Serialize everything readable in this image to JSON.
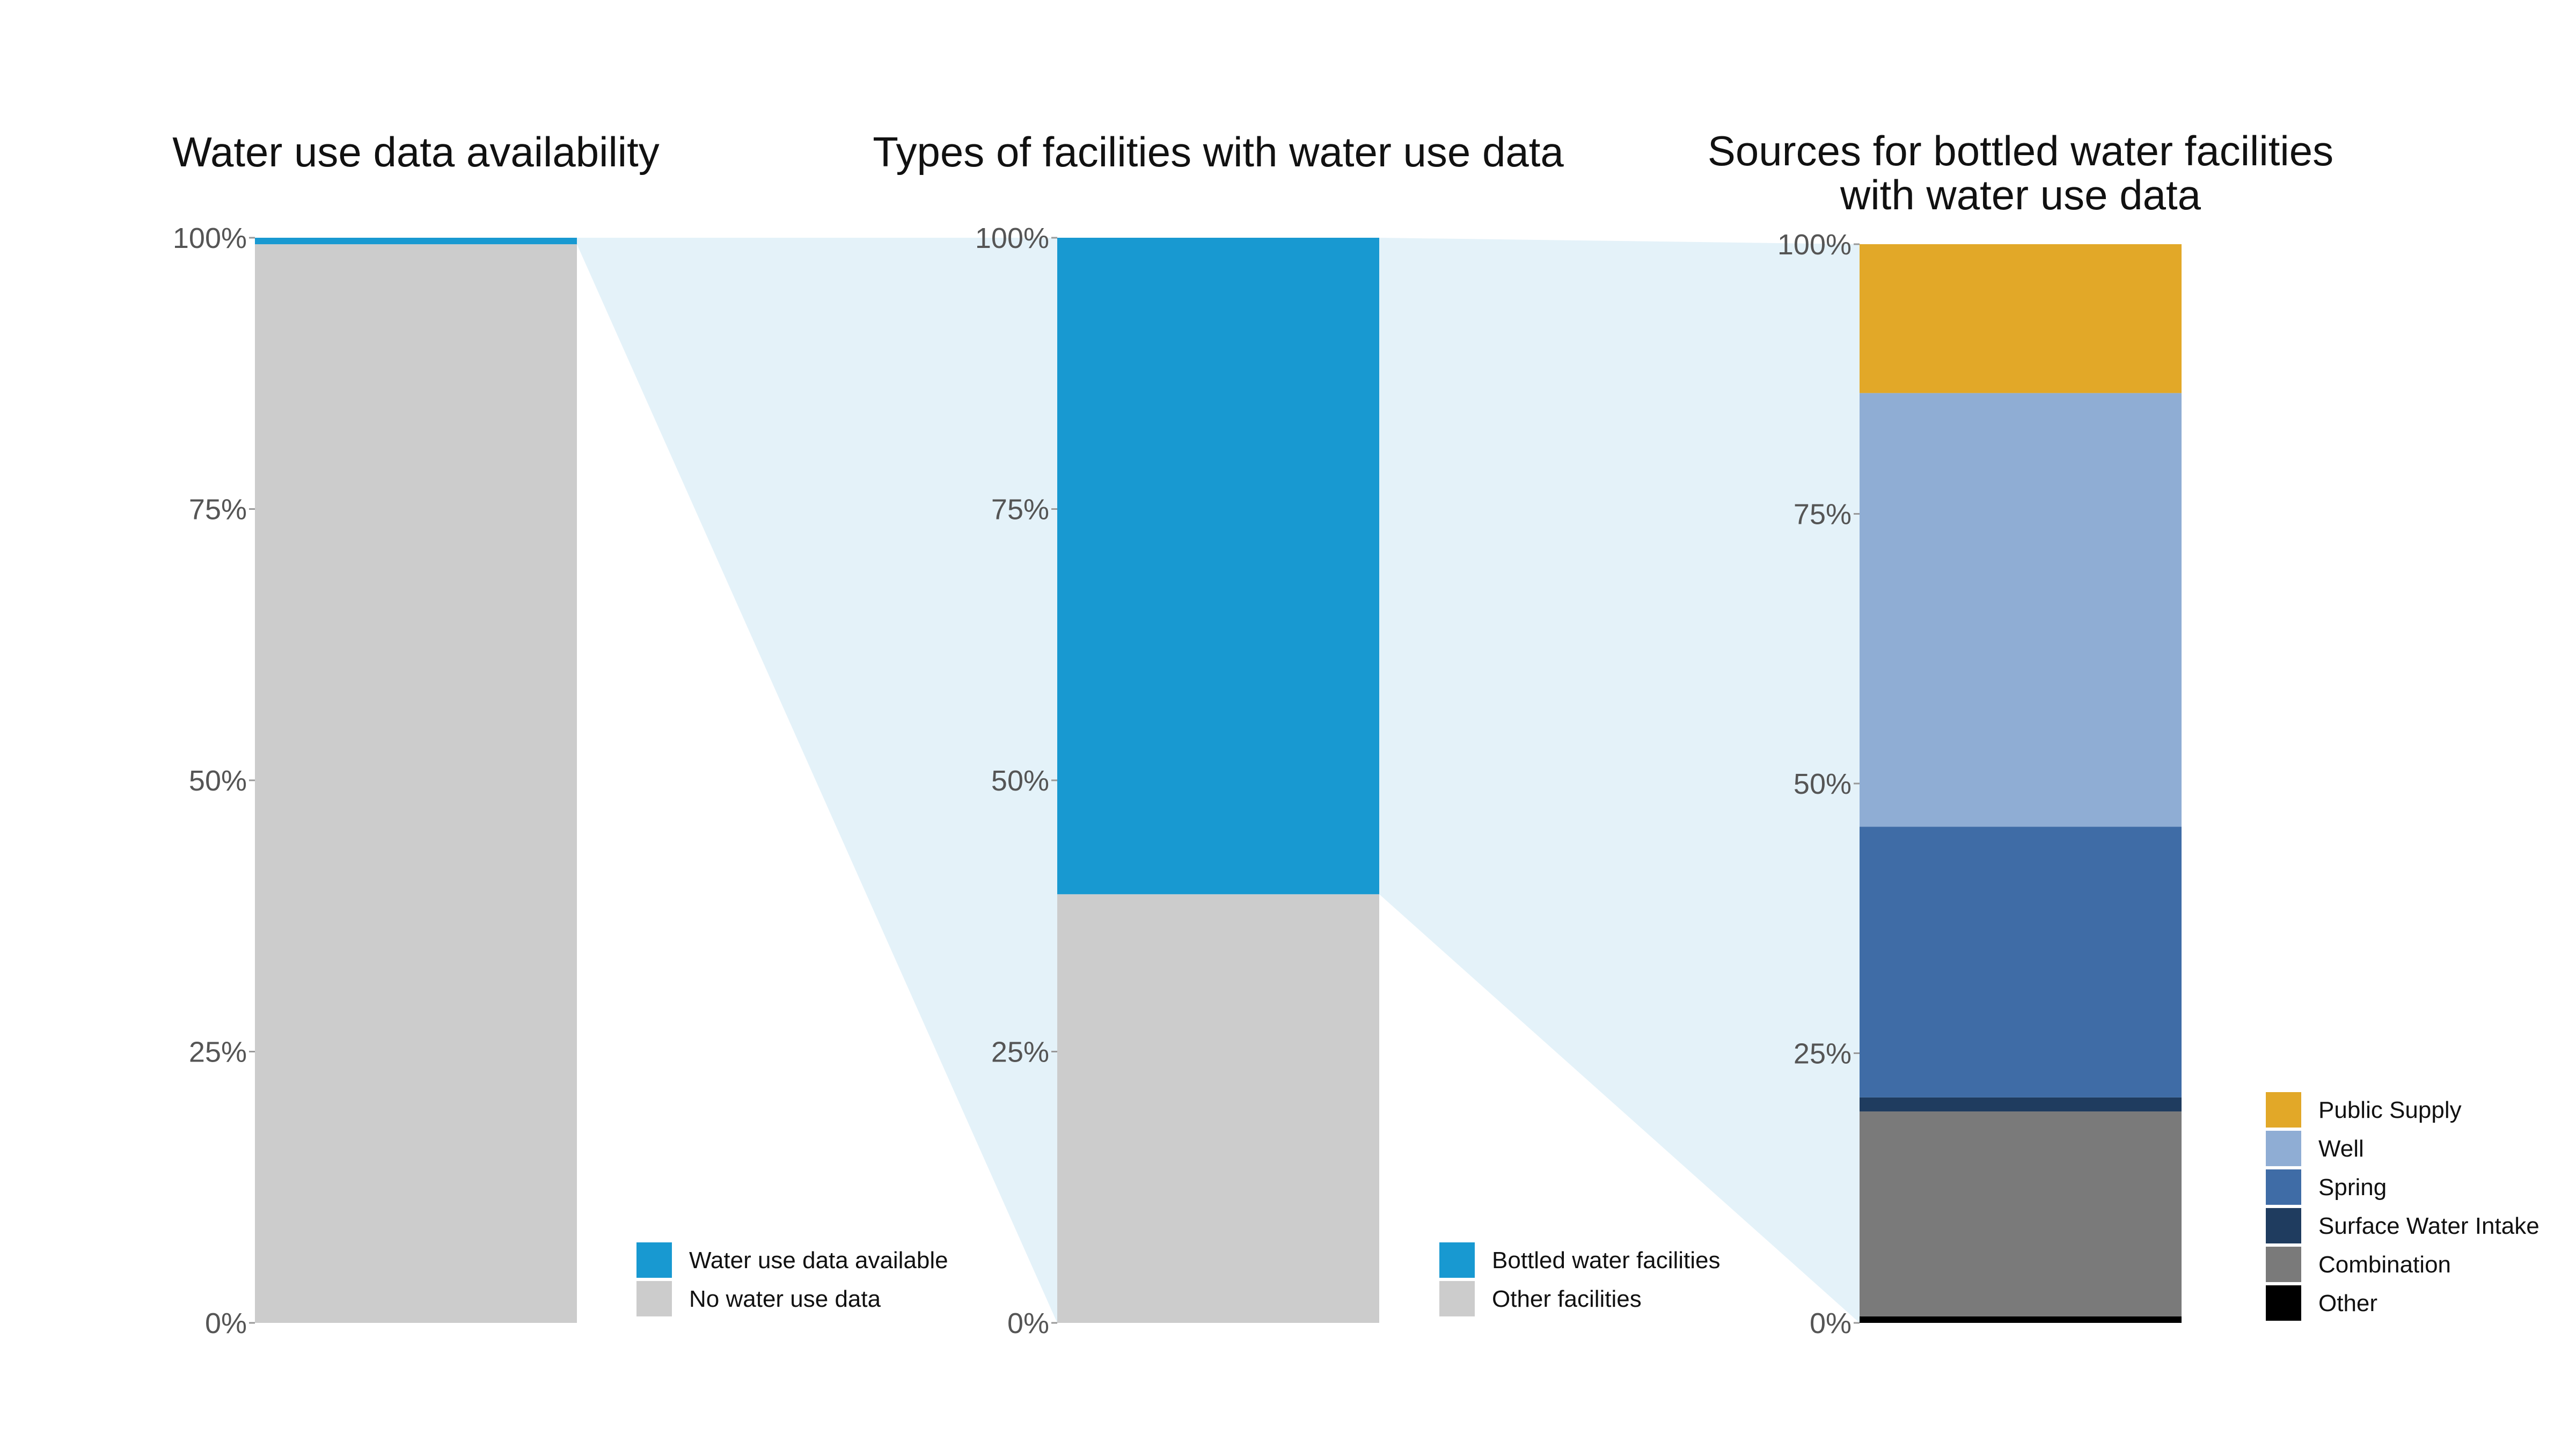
{
  "chart_data": [
    {
      "type": "bar",
      "stacked": true,
      "title": "Water use data availability",
      "ylim": [
        0,
        100
      ],
      "y_ticks": [
        "0%",
        "25%",
        "50%",
        "75%",
        "100%"
      ],
      "series": [
        {
          "name": "No water use data",
          "value": 99.4,
          "color": "#cccccc"
        },
        {
          "name": "Water use data available",
          "value": 0.6,
          "color": "#1899d1"
        }
      ],
      "legend": [
        "Water use data available",
        "No water use data"
      ]
    },
    {
      "type": "bar",
      "stacked": true,
      "title": "Types of facilities with water use data",
      "ylim": [
        0,
        100
      ],
      "y_ticks": [
        "0%",
        "25%",
        "50%",
        "75%",
        "100%"
      ],
      "series": [
        {
          "name": "Other facilities",
          "value": 39.5,
          "color": "#cccccc"
        },
        {
          "name": "Bottled water facilities",
          "value": 60.5,
          "color": "#1899d1"
        }
      ],
      "legend": [
        "Bottled water facilities",
        "Other facilities"
      ]
    },
    {
      "type": "bar",
      "stacked": true,
      "title": [
        "Sources for bottled water facilities",
        "with water use data"
      ],
      "ylim": [
        0,
        100
      ],
      "y_ticks": [
        "0%",
        "25%",
        "50%",
        "75%",
        "100%"
      ],
      "series": [
        {
          "name": "Other",
          "value": 0.6,
          "color": "#000000"
        },
        {
          "name": "Combination",
          "value": 19.0,
          "color": "#7a7a7a"
        },
        {
          "name": "Surface Water Intake",
          "value": 1.3,
          "color": "#1f3c5f"
        },
        {
          "name": "Spring",
          "value": 25.1,
          "color": "#3f6ca6"
        },
        {
          "name": "Well",
          "value": 40.2,
          "color": "#8fadd4"
        },
        {
          "name": "Public Supply",
          "value": 13.8,
          "color": "#e2a828"
        }
      ],
      "legend": [
        "Public Supply",
        "Well",
        "Spring",
        "Surface Water Intake",
        "Combination",
        "Other"
      ]
    }
  ],
  "colors": {
    "connector": "#e4f2f9",
    "axis_text": "#555555"
  }
}
